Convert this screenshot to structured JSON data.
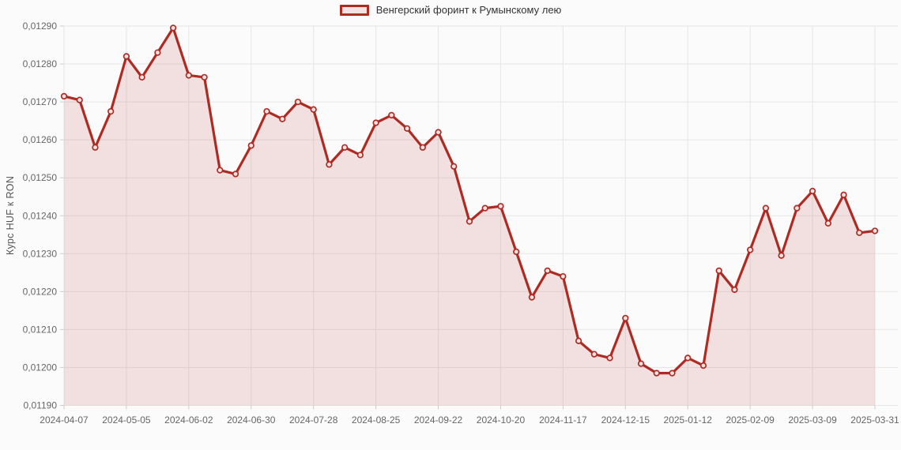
{
  "chart_data": {
    "type": "area",
    "title": "",
    "ylabel": "Курс HUF к RON",
    "legend_position": "top-center",
    "grid": true,
    "ylim": [
      0.0119,
      0.0129
    ],
    "y_tick_step": 0.0001,
    "x_tick_every": 4,
    "decimal_separator": ",",
    "x_tick_labels": [
      "2024-04-07",
      "2024-05-05",
      "2024-06-02",
      "2024-06-30",
      "2024-07-28",
      "2024-08-25",
      "2024-09-22",
      "2024-10-20",
      "2024-11-17",
      "2024-12-15",
      "2025-01-12",
      "2025-02-09",
      "2025-03-09",
      "2025-03-31"
    ],
    "x": [
      "2024-04-07",
      "2024-04-14",
      "2024-04-21",
      "2024-04-28",
      "2024-05-05",
      "2024-05-12",
      "2024-05-19",
      "2024-05-26",
      "2024-06-02",
      "2024-06-09",
      "2024-06-16",
      "2024-06-23",
      "2024-06-30",
      "2024-07-07",
      "2024-07-14",
      "2024-07-21",
      "2024-07-28",
      "2024-08-04",
      "2024-08-11",
      "2024-08-18",
      "2024-08-25",
      "2024-09-01",
      "2024-09-08",
      "2024-09-15",
      "2024-09-22",
      "2024-09-29",
      "2024-10-06",
      "2024-10-13",
      "2024-10-20",
      "2024-10-27",
      "2024-11-03",
      "2024-11-10",
      "2024-11-17",
      "2024-11-24",
      "2024-12-01",
      "2024-12-08",
      "2024-12-15",
      "2024-12-22",
      "2024-12-29",
      "2025-01-05",
      "2025-01-12",
      "2025-01-19",
      "2025-01-26",
      "2025-02-02",
      "2025-02-09",
      "2025-02-16",
      "2025-02-23",
      "2025-03-02",
      "2025-03-09",
      "2025-03-16",
      "2025-03-23",
      "2025-03-30",
      "2025-03-31"
    ],
    "series": [
      {
        "name": "Венгерский форинт к Румынскому лею",
        "values": [
          0.012715,
          0.012705,
          0.01258,
          0.012675,
          0.01282,
          0.012765,
          0.01283,
          0.012895,
          0.01277,
          0.012765,
          0.01252,
          0.01251,
          0.012585,
          0.012675,
          0.012655,
          0.0127,
          0.01268,
          0.012535,
          0.01258,
          0.01256,
          0.012645,
          0.012665,
          0.01263,
          0.01258,
          0.01262,
          0.01253,
          0.012385,
          0.01242,
          0.012425,
          0.012305,
          0.012185,
          0.012255,
          0.01224,
          0.01207,
          0.012035,
          0.012025,
          0.01213,
          0.01201,
          0.011985,
          0.011985,
          0.012025,
          0.012005,
          0.012255,
          0.012205,
          0.01231,
          0.01242,
          0.012295,
          0.01242,
          0.012465,
          0.01238,
          0.012455,
          0.012355,
          0.01236
        ]
      }
    ]
  },
  "colors": {
    "line": "#ae2b24",
    "area_fill": "rgba(174,43,36,0.13)",
    "marker_fill": "#f2e3e2",
    "grid": "#e6e6e6",
    "tick": "#cccccc",
    "axis_text": "#666666",
    "legend_text": "#333333",
    "background": "#fbfbfb"
  }
}
